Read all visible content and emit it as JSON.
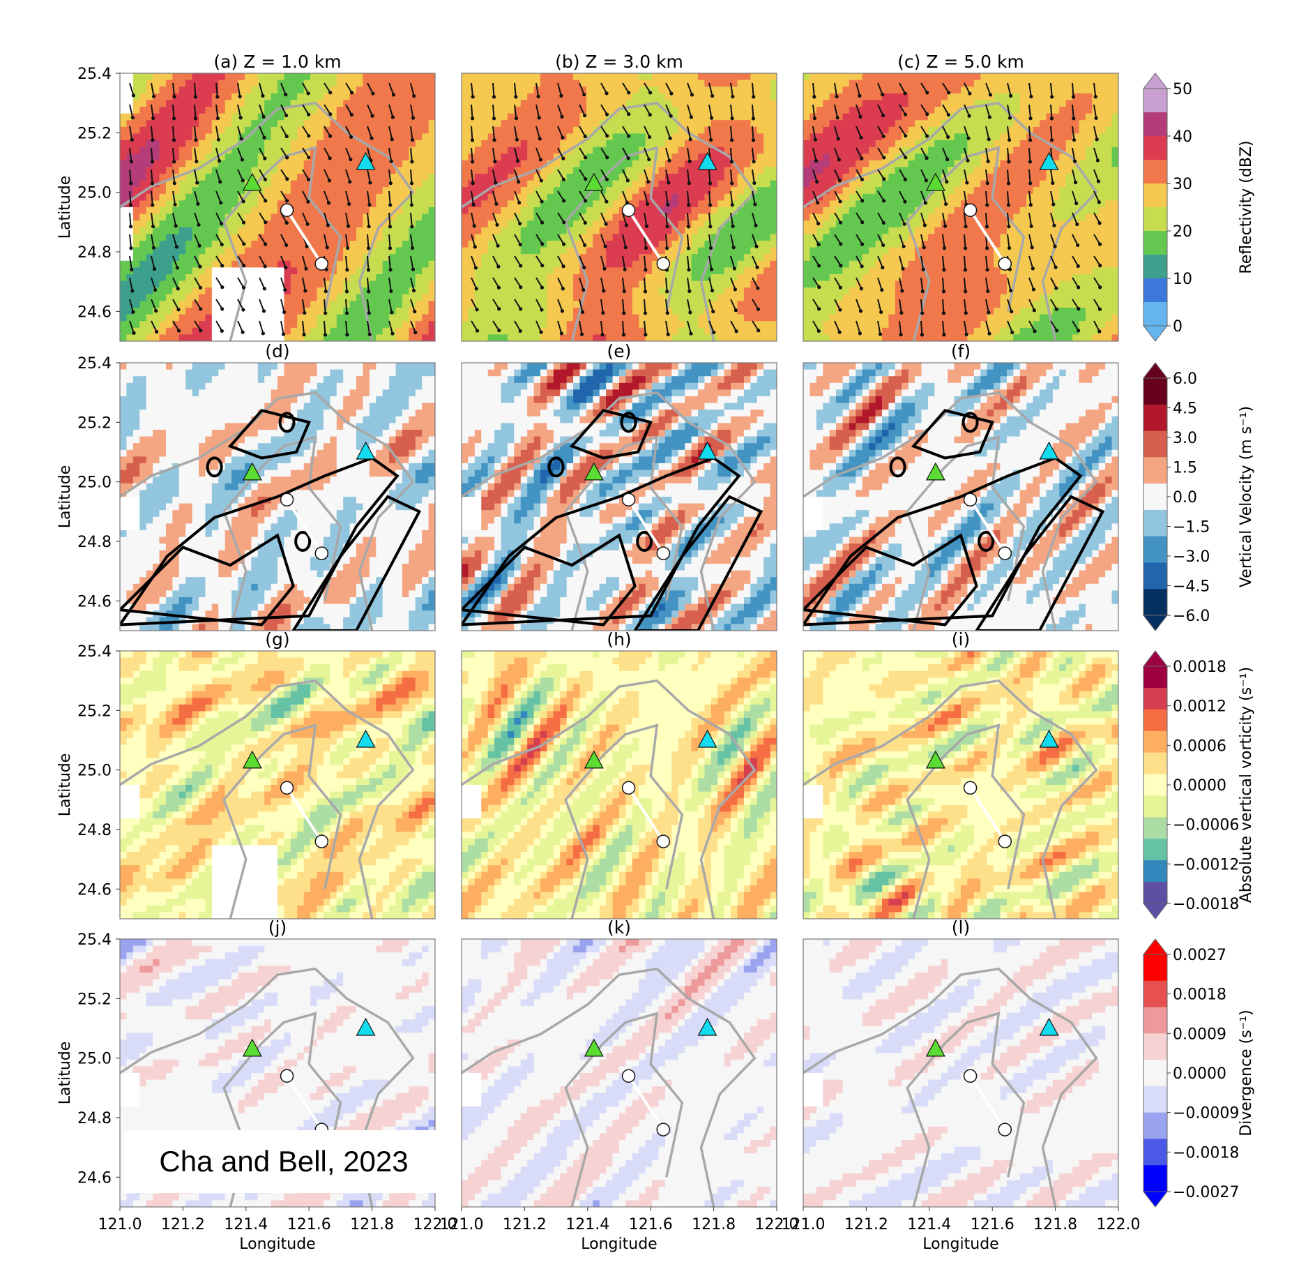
{
  "figure": {
    "columns": [
      {
        "title": "(a) Z = 1.0 km"
      },
      {
        "title": "(b) Z = 3.0 km"
      },
      {
        "title": "(c) Z = 5.0 km"
      }
    ],
    "panel_labels": [
      [
        "(a) Z = 1.0 km",
        "(b) Z = 3.0 km",
        "(c) Z = 5.0 km"
      ],
      [
        "(d)",
        "(e)",
        "(f)"
      ],
      [
        "(g)",
        "(h)",
        "(i)"
      ],
      [
        "(j)",
        "(k)",
        "(l)"
      ]
    ],
    "citation": "Cha and Bell, 2023"
  },
  "chart_data": {
    "type": "heatmap",
    "xlabel": "Longitude",
    "ylabel": "Latitude",
    "xlim": [
      121.0,
      122.0
    ],
    "ylim": [
      24.5,
      25.4
    ],
    "xticks": [
      "121.0",
      "121.2",
      "121.4",
      "121.6",
      "121.8",
      "122.0"
    ],
    "yticks": [
      "24.6",
      "24.8",
      "25.0",
      "25.2",
      "25.4"
    ],
    "rows": [
      {
        "variable": "Reflectivity",
        "colorbar_label": "Reflectivity (dBZ)",
        "colorbar_ticks": [
          "0",
          "10",
          "20",
          "30",
          "40",
          "50"
        ],
        "colors": [
          "#64b4f0",
          "#3c78dc",
          "#3ca08c",
          "#64c850",
          "#c8dc50",
          "#f5c850",
          "#f0784b",
          "#dc3c50",
          "#b43c78",
          "#c8a0d2"
        ],
        "overlay": "wind vectors"
      },
      {
        "variable": "Vertical Velocity",
        "colorbar_label": "Vertical Velocity (m s⁻¹)",
        "colorbar_ticks": [
          "6.0",
          "4.5",
          "3.0",
          "1.5",
          "0.0",
          "−1.5",
          "−3.0",
          "−4.5",
          "−6.0"
        ],
        "colors": [
          "#053061",
          "#2166ac",
          "#4393c3",
          "#92c5de",
          "#f7f7f7",
          "#f4a582",
          "#d6604d",
          "#b2182b",
          "#67001f"
        ],
        "overlay": "reflectivity contours"
      },
      {
        "variable": "Absolute vertical vorticity",
        "colorbar_label": "Absolute vertical vorticity (s⁻¹)",
        "colorbar_ticks": [
          "0.0018",
          "0.0012",
          "0.0006",
          "0.0000",
          "−0.0006",
          "−0.0012",
          "−0.0018"
        ],
        "colors": [
          "#5e4fa2",
          "#3288bd",
          "#66c2a5",
          "#abdda4",
          "#e6f598",
          "#ffffbf",
          "#fee08b",
          "#fdae61",
          "#f46d43",
          "#d53e4f",
          "#9e0142"
        ]
      },
      {
        "variable": "Divergence",
        "colorbar_label": "Divergence (s⁻¹)",
        "colorbar_ticks": [
          "0.0027",
          "0.0018",
          "0.0009",
          "0.0000",
          "−0.0009",
          "−0.0018",
          "−0.0027"
        ],
        "colors": [
          "#0000ff",
          "#4a5ae6",
          "#9aa3ef",
          "#d8dcf8",
          "#f6f6f6",
          "#f7d2d2",
          "#ef9a9a",
          "#e65050",
          "#ff0000"
        ]
      }
    ],
    "markers": [
      {
        "symbol": "triangle",
        "color": "#5adc32",
        "lon": 121.42,
        "lat": 25.03
      },
      {
        "symbol": "triangle",
        "color": "#14dcf0",
        "lon": 121.78,
        "lat": 25.1
      },
      {
        "symbol": "circle",
        "color": "#ffffff",
        "lon": 121.53,
        "lat": 24.94
      },
      {
        "symbol": "circle",
        "color": "#ffffff",
        "lon": 121.64,
        "lat": 24.76
      }
    ]
  }
}
